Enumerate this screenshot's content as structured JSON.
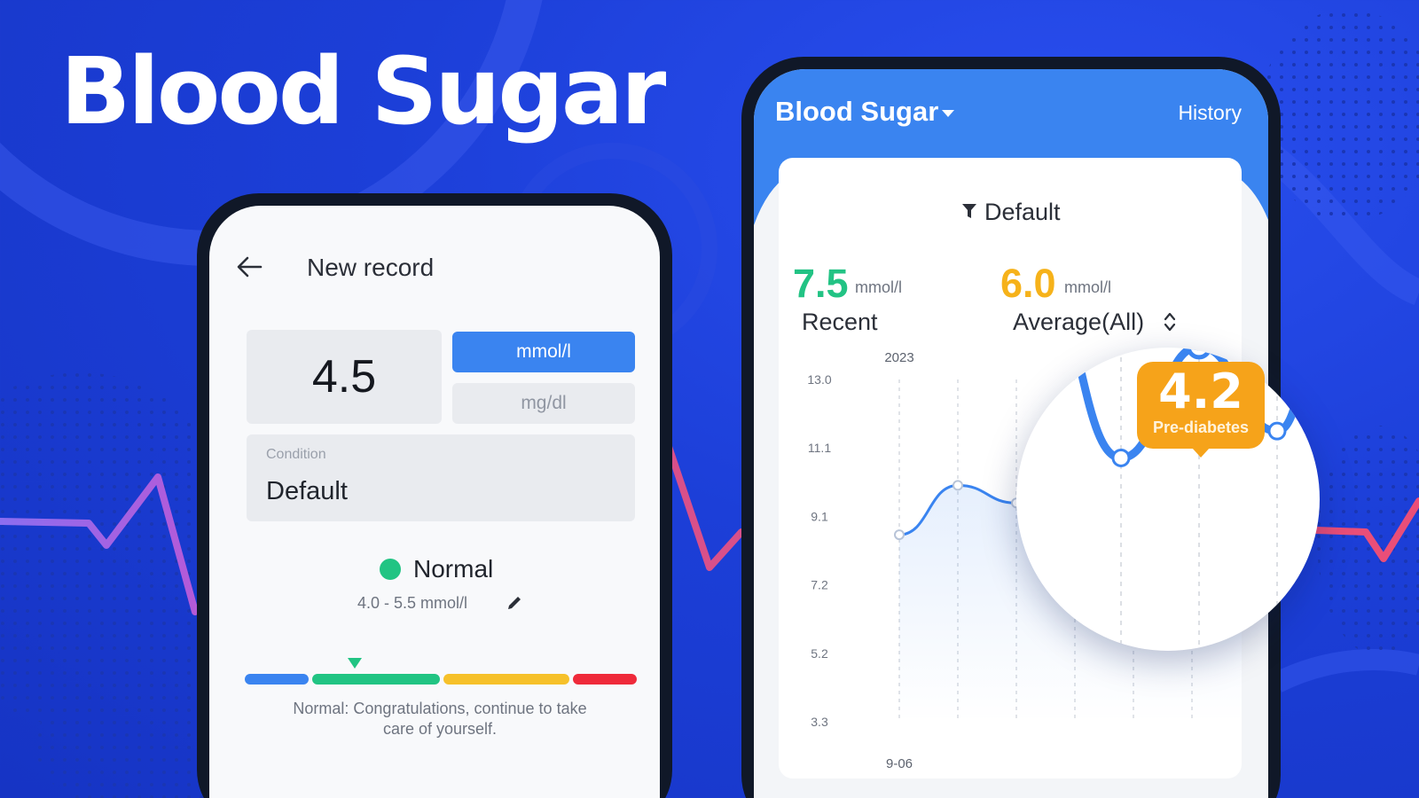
{
  "headline": "Blood Sugar",
  "theme": {
    "background": "#1c3fd8",
    "primary_blue": "#3a84f0",
    "normal_green": "#21c483",
    "warning_yellow": "#f6c12a",
    "danger_red": "#ef2a3a",
    "badge_orange": "#f6a31a",
    "ecg_purple": "#8c6ef0",
    "ecg_pink": "#e8507a"
  },
  "new_record": {
    "back_icon": "arrow-left-icon",
    "title": "New record",
    "value": "4.5",
    "units": {
      "selected": "mmol/l",
      "other": "mg/dl"
    },
    "condition": {
      "label": "Condition",
      "value": "Default"
    },
    "status": {
      "label": "Normal",
      "range": "4.0 - 5.5 mmol/l",
      "dot_color": "#21c483"
    },
    "scale": {
      "marker_position_pct": 18
    },
    "advice": "Normal: Congratulations, continue to take care of yourself."
  },
  "dashboard": {
    "title": "Blood Sugar",
    "history_label": "History",
    "filter_label": "Default",
    "recent": {
      "value": "7.5",
      "unit": "mmol/l",
      "label": "Recent"
    },
    "average": {
      "value": "6.0",
      "unit": "mmol/l",
      "label": "Average(All)"
    }
  },
  "highlight": {
    "value": "4.2",
    "label": "Pre-diabetes"
  },
  "chart_data": {
    "type": "line",
    "title": "",
    "x_top_label": "2023",
    "x_label": "9-06",
    "y_ticks": [
      "13.0",
      "11.1",
      "9.1",
      "7.2",
      "5.2",
      "3.3"
    ],
    "ylim": [
      3.3,
      13.0
    ],
    "grid": "vertical dashed",
    "points": [
      8.6,
      10.0,
      9.5,
      11.7,
      7.4,
      10.3,
      7.8
    ]
  }
}
